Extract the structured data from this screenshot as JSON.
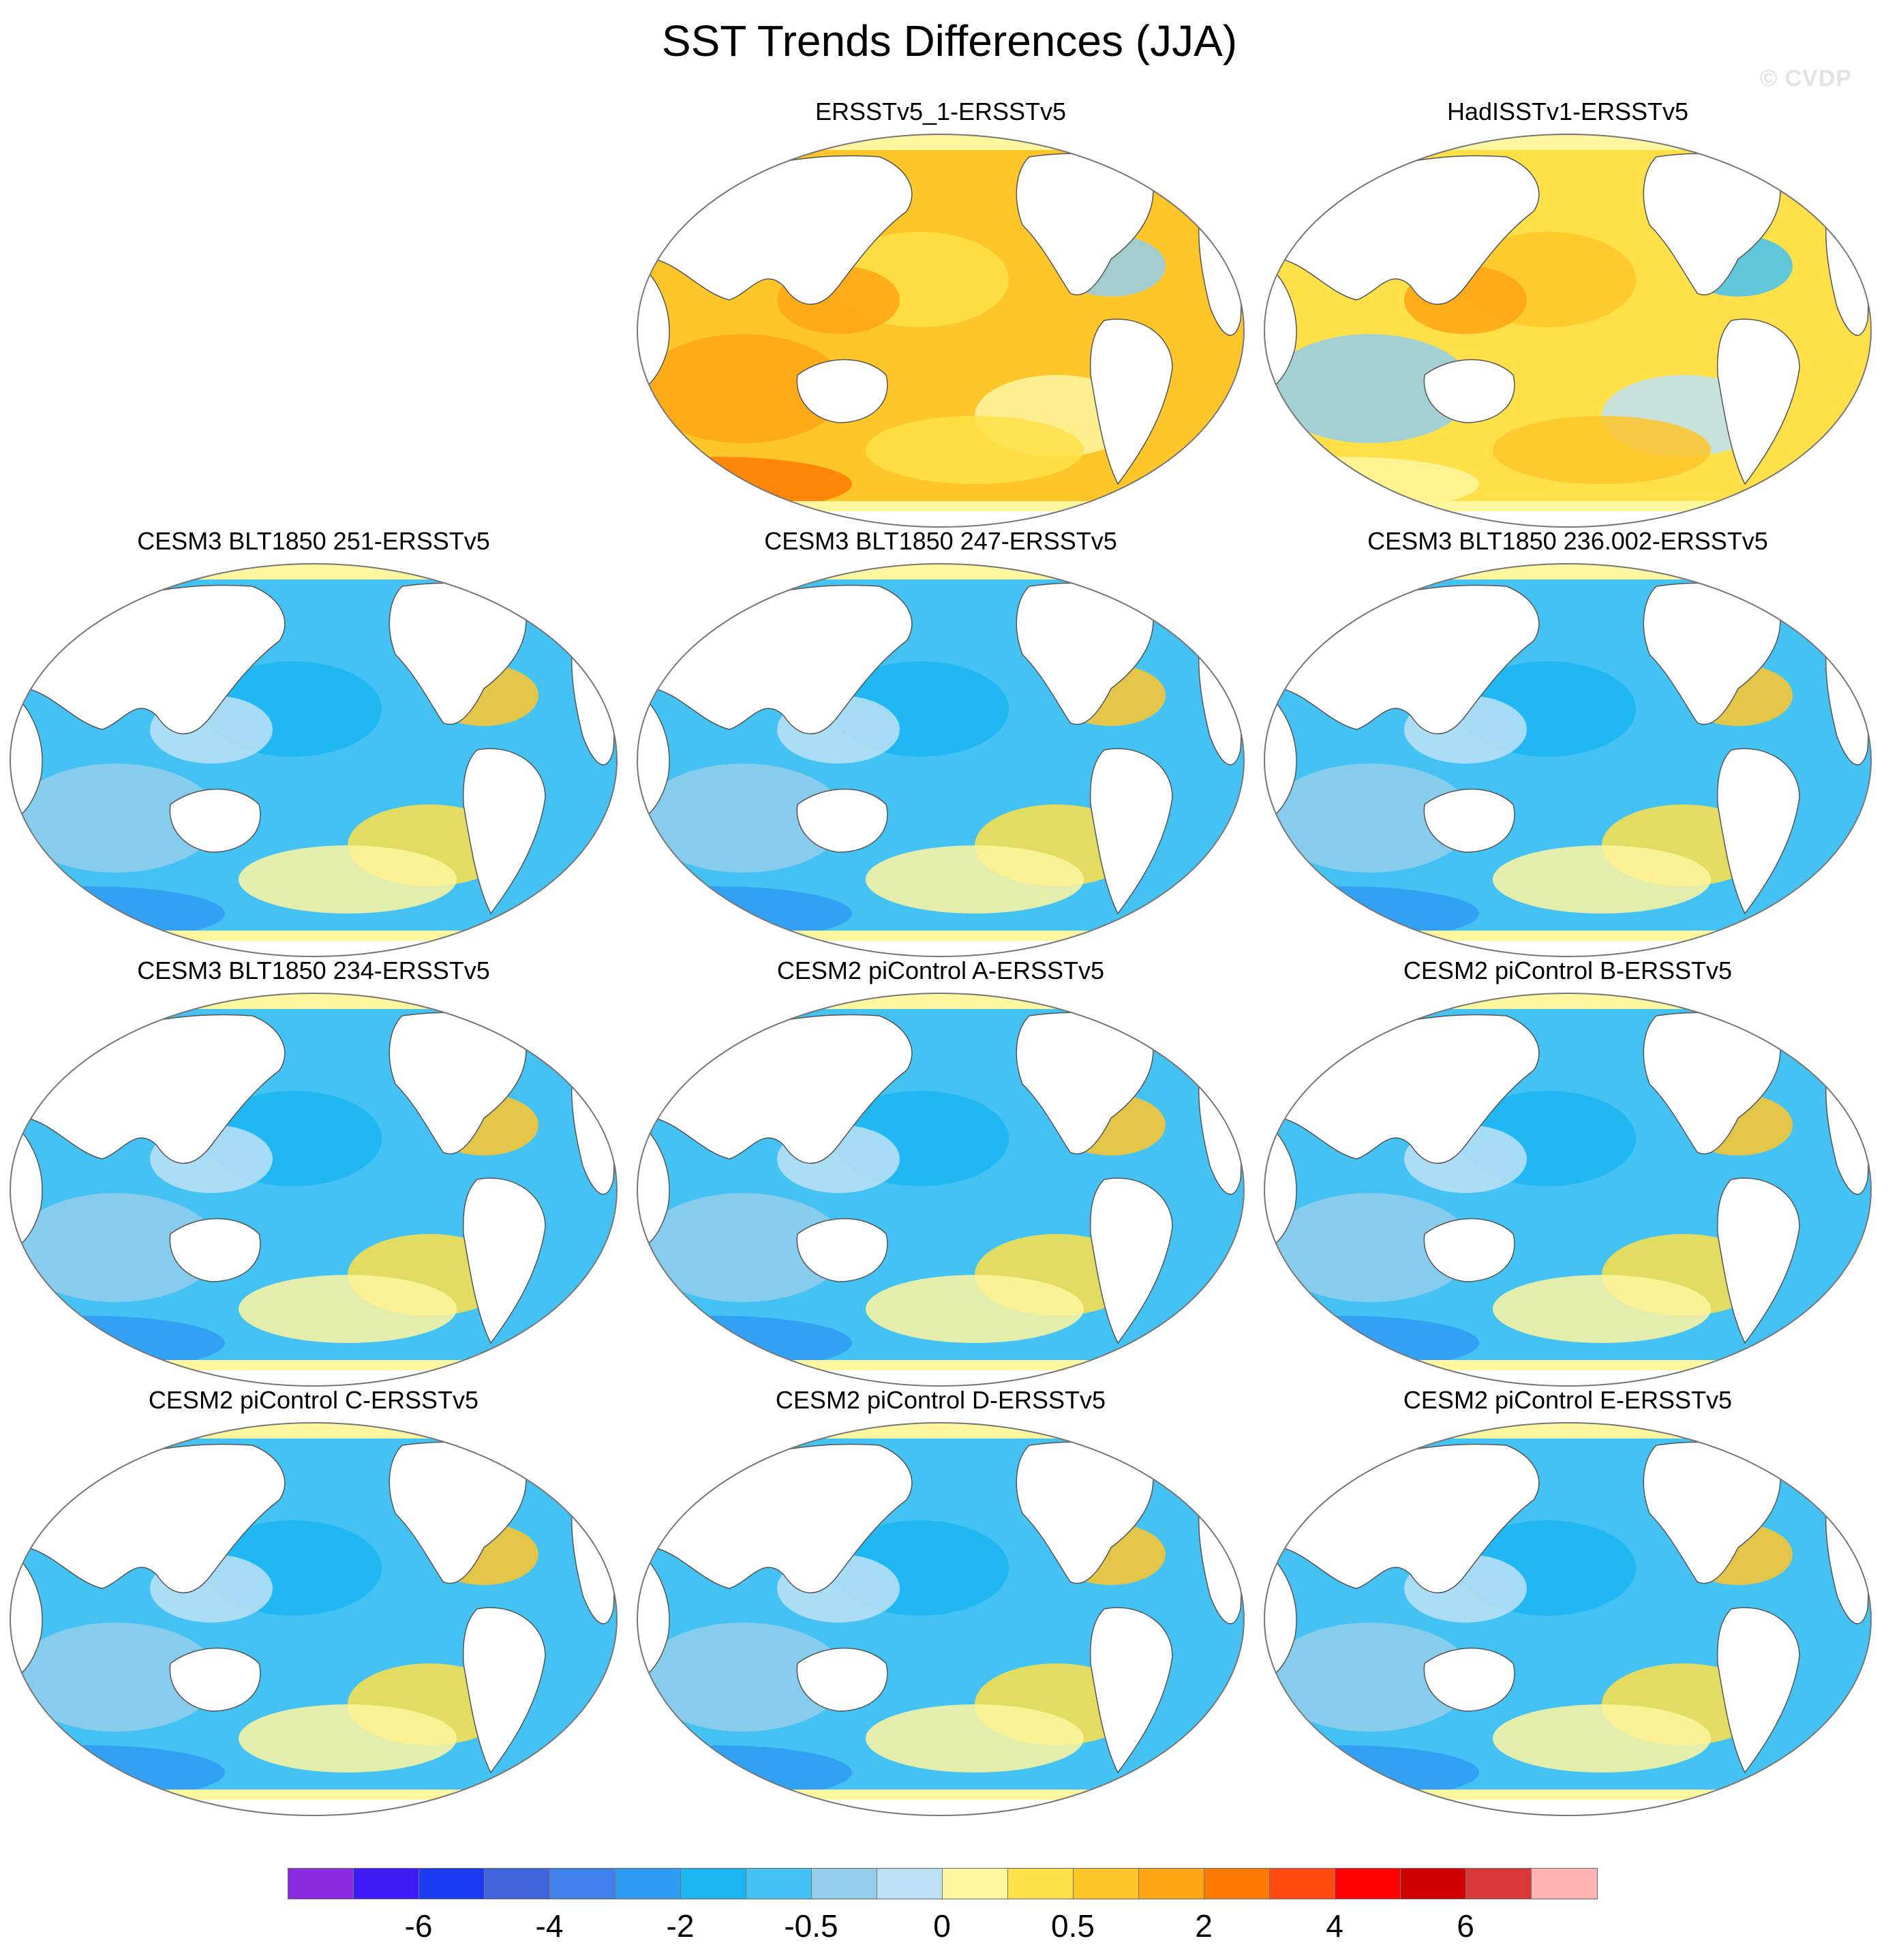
{
  "figure": {
    "title": "SST Trends Differences (JJA)",
    "watermark": "© CVDP"
  },
  "panels": [
    {
      "title": "ERSSTv5_1-ERSSTv5",
      "pattern": "warm"
    },
    {
      "title": "HadISSTv1-ERSSTv5",
      "pattern": "mixed"
    },
    {
      "title": "CESM3 BLT1850 251-ERSSTv5",
      "pattern": "cool"
    },
    {
      "title": "CESM3 BLT1850 247-ERSSTv5",
      "pattern": "cool"
    },
    {
      "title": "CESM3 BLT1850 236.002-ERSSTv5",
      "pattern": "cool"
    },
    {
      "title": "CESM3 BLT1850 234-ERSSTv5",
      "pattern": "cool"
    },
    {
      "title": "CESM2 piControl A-ERSSTv5",
      "pattern": "cool"
    },
    {
      "title": "CESM2 piControl B-ERSSTv5",
      "pattern": "cool"
    },
    {
      "title": "CESM2 piControl C-ERSSTv5",
      "pattern": "cool"
    },
    {
      "title": "CESM2 piControl D-ERSSTv5",
      "pattern": "cool"
    },
    {
      "title": "CESM2 piControl E-ERSSTv5",
      "pattern": "cool"
    }
  ],
  "colorbar": {
    "colors": [
      "#8a2be2",
      "#3b1cf5",
      "#1a3af0",
      "#3f63db",
      "#3f7fea",
      "#2f9bf2",
      "#1bb5f2",
      "#43c2f3",
      "#93cdeb",
      "#bde2f6",
      "#fff6a0",
      "#ffe048",
      "#ffc62a",
      "#ffa514",
      "#ff7a00",
      "#ff4a10",
      "#ff0000",
      "#d10000",
      "#d93838",
      "#ffb3b3"
    ],
    "labels": [
      "-6",
      "-4",
      "-2",
      "-0.5",
      "0",
      "0.5",
      "2",
      "4",
      "6"
    ]
  }
}
